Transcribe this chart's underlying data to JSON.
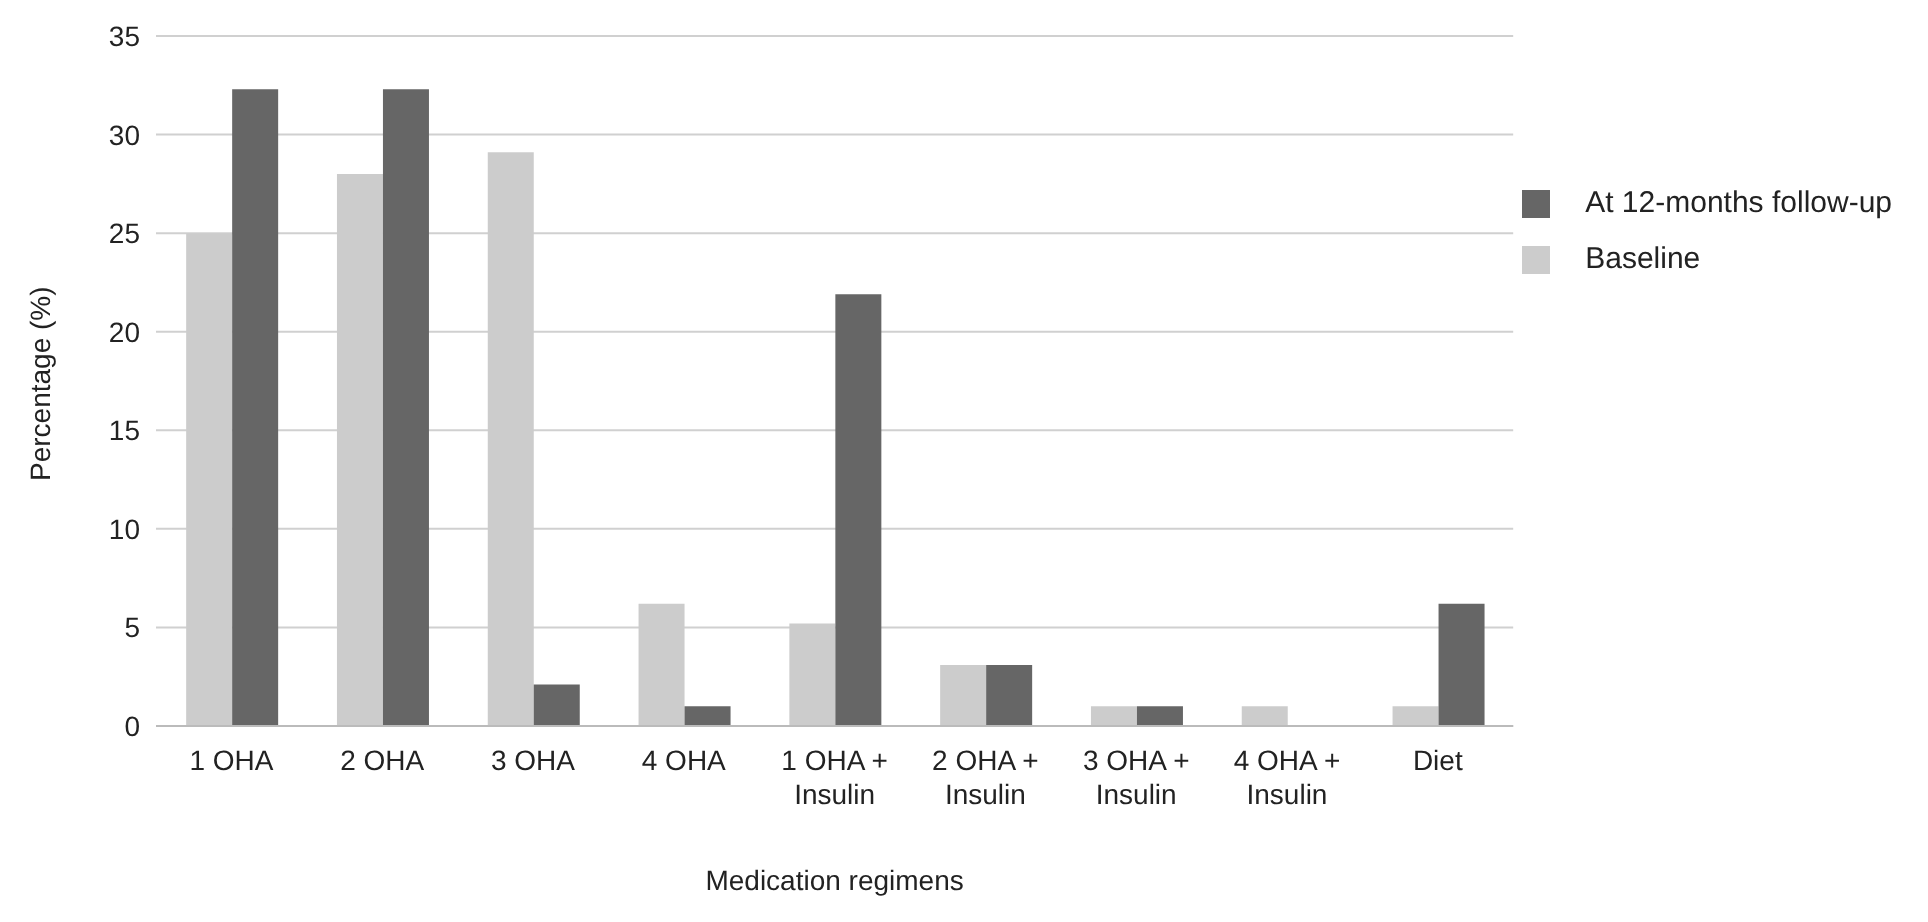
{
  "chart_data": {
    "type": "bar",
    "xlabel": "Medication regimens",
    "ylabel": "Percentage (%)",
    "categories": [
      "1 OHA",
      "2 OHA",
      "3 OHA",
      "4 OHA",
      "1 OHA + Insulin",
      "2 OHA + Insulin",
      "3 OHA + Insulin",
      "4 OHA + Insulin",
      "Diet"
    ],
    "series": [
      {
        "name": "Baseline",
        "color": "#cccccc",
        "values": [
          25,
          28,
          29.1,
          6.2,
          5.2,
          3.1,
          1,
          1,
          1
        ]
      },
      {
        "name": "At 12-months follow-up",
        "color": "#666666",
        "values": [
          32.3,
          32.3,
          2.1,
          1,
          21.9,
          3.1,
          1,
          0,
          6.2
        ]
      }
    ],
    "ylim": [
      0,
      35
    ],
    "yticks": [
      0,
      5,
      10,
      15,
      20,
      25,
      30,
      35
    ],
    "grid": "y",
    "legend": "right"
  }
}
